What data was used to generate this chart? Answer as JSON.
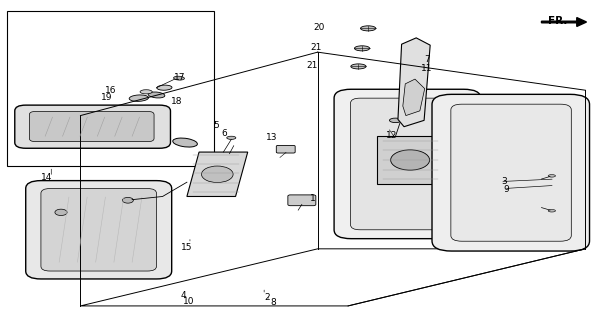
{
  "bg_color": "#ffffff",
  "line_color": "#000000",
  "fig_width": 6.11,
  "fig_height": 3.2,
  "dpi": 100
}
